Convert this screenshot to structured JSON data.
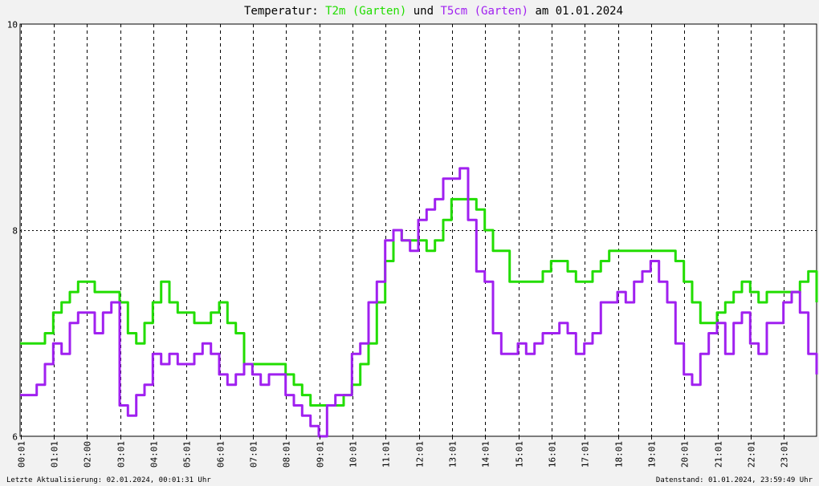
{
  "chart_data": {
    "type": "line",
    "title_parts": [
      "Temperatur: ",
      "T2m (Garten)",
      " und ",
      "T5cm (Garten)",
      " am 01.01.2024"
    ],
    "xlabel": "",
    "ylabel": "",
    "y_ticks": [
      "6",
      "8",
      "10"
    ],
    "ylim": [
      6,
      10
    ],
    "xlim": [
      0,
      1440
    ],
    "x_tick_labels": [
      "00:01",
      "01:01",
      "02:00",
      "03:01",
      "04:01",
      "05:01",
      "06:01",
      "07:01",
      "08:01",
      "09:01",
      "10:01",
      "11:01",
      "12:01",
      "13:01",
      "14:01",
      "15:01",
      "16:01",
      "17:01",
      "18:01",
      "19:01",
      "20:01",
      "21:01",
      "22:01",
      "23:01"
    ],
    "x_ticks_minutes": [
      1,
      61,
      120,
      181,
      241,
      301,
      361,
      421,
      481,
      541,
      601,
      661,
      721,
      781,
      841,
      901,
      961,
      1021,
      1081,
      1141,
      1201,
      1261,
      1321,
      1381
    ],
    "grid": true,
    "colors": {
      "T2m": "#22dd00",
      "T5cm": "#a020f0",
      "background": "#ffffff",
      "title_text": "#000000"
    },
    "series": [
      {
        "name": "T2m (Garten)",
        "x": [
          0,
          15,
          30,
          45,
          60,
          75,
          90,
          105,
          120,
          135,
          150,
          165,
          180,
          195,
          210,
          225,
          240,
          255,
          270,
          285,
          300,
          315,
          330,
          345,
          360,
          375,
          390,
          405,
          420,
          435,
          450,
          465,
          480,
          495,
          510,
          525,
          540,
          555,
          570,
          585,
          600,
          615,
          630,
          645,
          660,
          675,
          690,
          705,
          720,
          735,
          750,
          765,
          780,
          795,
          810,
          825,
          840,
          855,
          870,
          885,
          900,
          915,
          930,
          945,
          960,
          975,
          990,
          1005,
          1020,
          1035,
          1050,
          1065,
          1080,
          1095,
          1110,
          1125,
          1140,
          1155,
          1170,
          1185,
          1200,
          1215,
          1230,
          1245,
          1260,
          1275,
          1290,
          1305,
          1320,
          1335,
          1350,
          1365,
          1380,
          1395,
          1410,
          1425,
          1440
        ],
        "values": [
          6.9,
          6.9,
          6.9,
          7.0,
          7.2,
          7.3,
          7.4,
          7.5,
          7.5,
          7.4,
          7.4,
          7.4,
          7.3,
          7.0,
          6.9,
          7.1,
          7.3,
          7.5,
          7.3,
          7.2,
          7.2,
          7.1,
          7.1,
          7.2,
          7.3,
          7.1,
          7.0,
          6.7,
          6.7,
          6.7,
          6.7,
          6.7,
          6.6,
          6.5,
          6.4,
          6.3,
          6.3,
          6.3,
          6.3,
          6.4,
          6.5,
          6.7,
          6.9,
          7.3,
          7.7,
          8.0,
          7.9,
          7.9,
          7.9,
          7.8,
          7.9,
          8.1,
          8.3,
          8.3,
          8.3,
          8.2,
          8.0,
          7.8,
          7.8,
          7.5,
          7.5,
          7.5,
          7.5,
          7.6,
          7.7,
          7.7,
          7.6,
          7.5,
          7.5,
          7.6,
          7.7,
          7.8,
          7.8,
          7.8,
          7.8,
          7.8,
          7.8,
          7.8,
          7.8,
          7.7,
          7.5,
          7.3,
          7.1,
          7.1,
          7.2,
          7.3,
          7.4,
          7.5,
          7.4,
          7.3,
          7.4,
          7.4,
          7.4,
          7.4,
          7.5,
          7.6,
          7.3
        ]
      },
      {
        "name": "T5cm (Garten)",
        "x": [
          0,
          15,
          30,
          45,
          60,
          75,
          90,
          105,
          120,
          135,
          150,
          165,
          180,
          195,
          210,
          225,
          240,
          255,
          270,
          285,
          300,
          315,
          330,
          345,
          360,
          375,
          390,
          405,
          420,
          435,
          450,
          465,
          480,
          495,
          510,
          525,
          540,
          555,
          570,
          585,
          600,
          615,
          630,
          645,
          660,
          675,
          690,
          705,
          720,
          735,
          750,
          765,
          780,
          795,
          810,
          825,
          840,
          855,
          870,
          885,
          900,
          915,
          930,
          945,
          960,
          975,
          990,
          1005,
          1020,
          1035,
          1050,
          1065,
          1080,
          1095,
          1110,
          1125,
          1140,
          1155,
          1170,
          1185,
          1200,
          1215,
          1230,
          1245,
          1260,
          1275,
          1290,
          1305,
          1320,
          1335,
          1350,
          1365,
          1380,
          1395,
          1410,
          1425,
          1440
        ],
        "values": [
          6.4,
          6.4,
          6.5,
          6.7,
          6.9,
          6.8,
          7.1,
          7.2,
          7.2,
          7.0,
          7.2,
          7.3,
          6.3,
          6.2,
          6.4,
          6.5,
          6.8,
          6.7,
          6.8,
          6.7,
          6.7,
          6.8,
          6.9,
          6.8,
          6.6,
          6.5,
          6.6,
          6.7,
          6.6,
          6.5,
          6.6,
          6.6,
          6.4,
          6.3,
          6.2,
          6.1,
          6.0,
          6.3,
          6.4,
          6.4,
          6.8,
          6.9,
          7.3,
          7.5,
          7.9,
          8.0,
          7.9,
          7.8,
          8.1,
          8.2,
          8.3,
          8.5,
          8.5,
          8.6,
          8.1,
          7.6,
          7.5,
          7.0,
          6.8,
          6.8,
          6.9,
          6.8,
          6.9,
          7.0,
          7.0,
          7.1,
          7.0,
          6.8,
          6.9,
          7.0,
          7.3,
          7.3,
          7.4,
          7.3,
          7.5,
          7.6,
          7.7,
          7.5,
          7.3,
          6.9,
          6.6,
          6.5,
          6.8,
          7.0,
          7.1,
          6.8,
          7.1,
          7.2,
          6.9,
          6.8,
          7.1,
          7.1,
          7.3,
          7.4,
          7.2,
          6.8,
          6.6
        ]
      }
    ],
    "footer_left": "Letzte Aktualisierung: 02.01.2024, 00:01:31 Uhr",
    "footer_right": "Datenstand: 01.01.2024, 23:59:49 Uhr"
  }
}
